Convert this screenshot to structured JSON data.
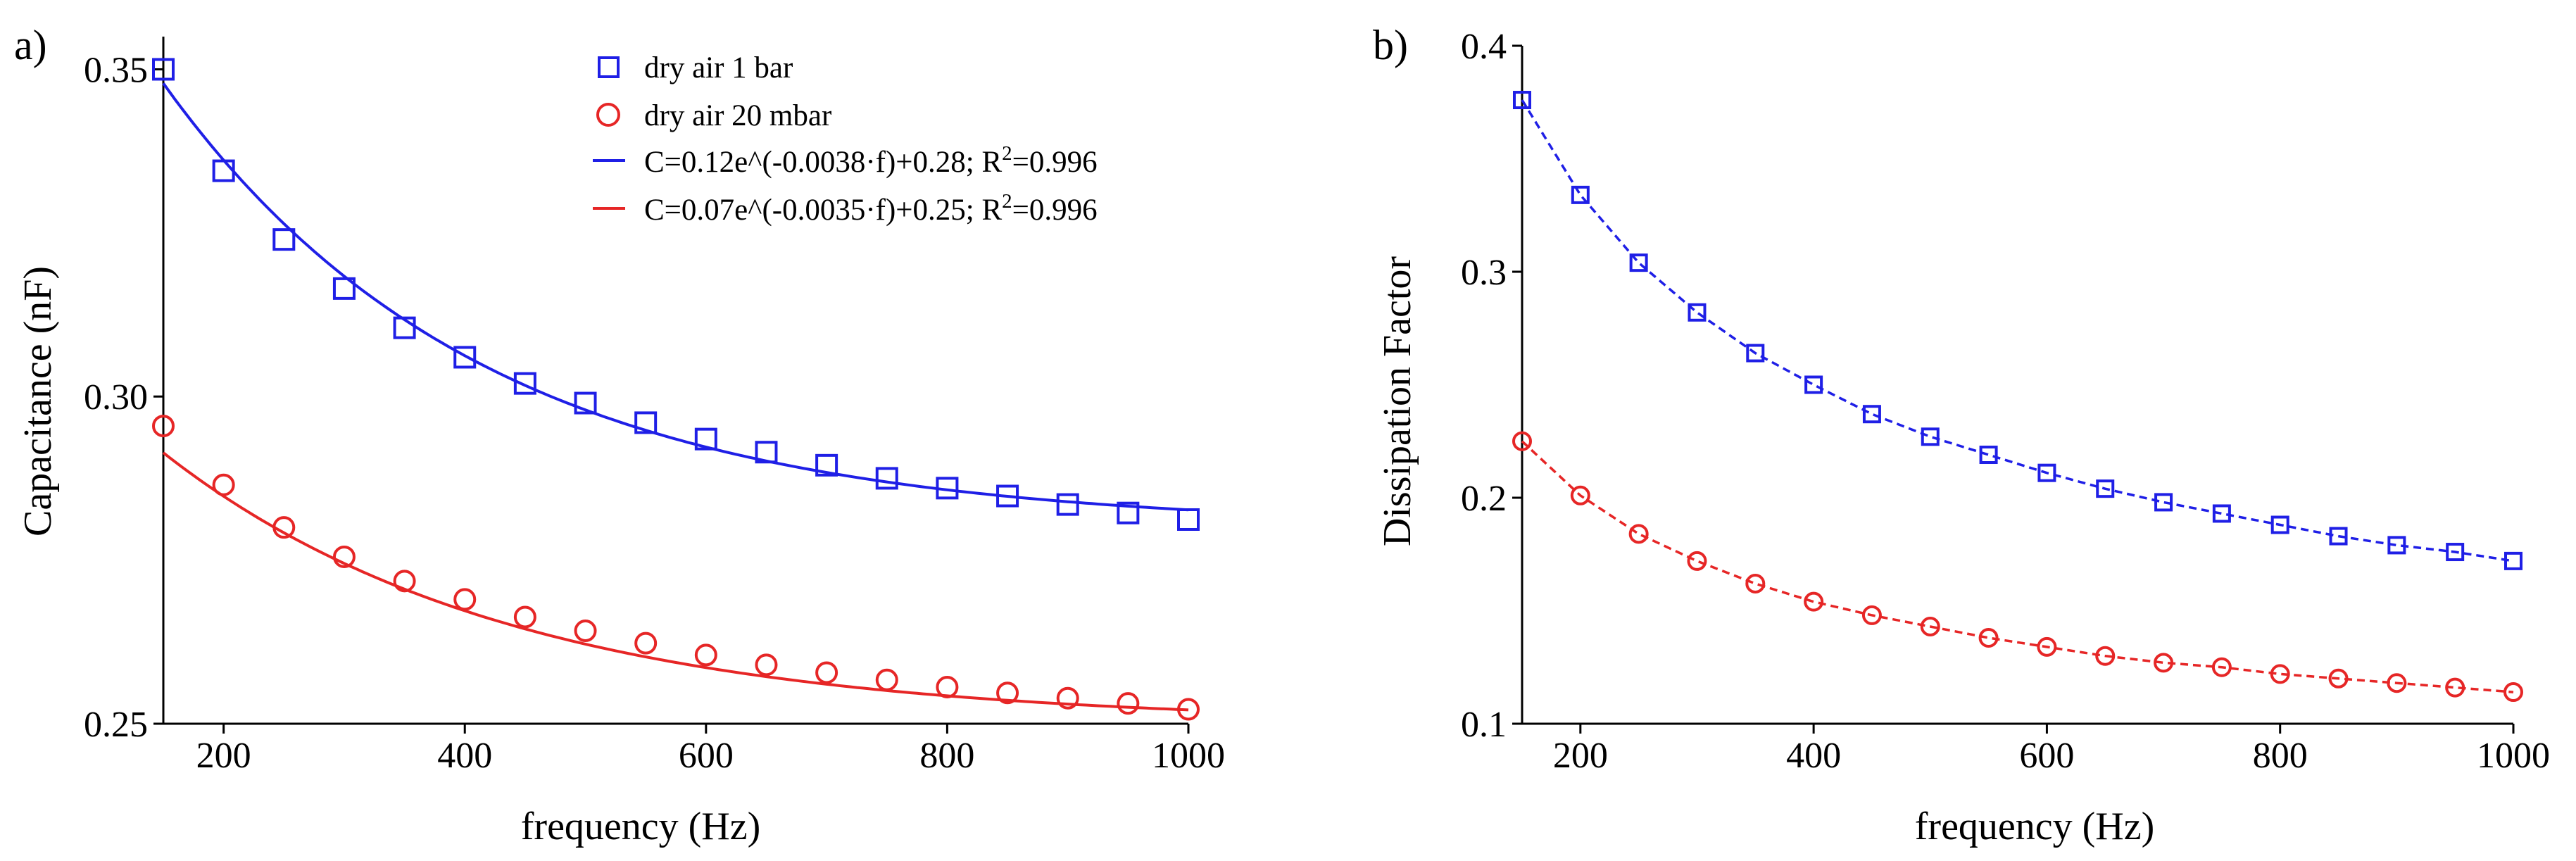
{
  "figure": {
    "panel_a": "a)",
    "panel_b": "b)"
  },
  "colors": {
    "series1": "#1f1fe6",
    "series2": "#e62626",
    "axis": "#000000"
  },
  "chart_data": [
    {
      "type": "scatter",
      "panel": "a)",
      "title": "",
      "xlabel": "frequency (Hz)",
      "ylabel": "Capacitance (nF)",
      "xlim": [
        150,
        1000
      ],
      "ylim": [
        0.25,
        0.355
      ],
      "xticks": [
        "200",
        "400",
        "600",
        "800",
        "1000"
      ],
      "yticks": [
        "0.25",
        "0.30",
        "0.35"
      ],
      "x": [
        150,
        200,
        250,
        300,
        350,
        400,
        450,
        500,
        550,
        600,
        650,
        700,
        750,
        800,
        850,
        900,
        950,
        1000
      ],
      "series": [
        {
          "name": "dry air 1 bar",
          "marker": "square",
          "values": [
            0.35,
            0.3345,
            0.324,
            0.3165,
            0.3105,
            0.306,
            0.302,
            0.299,
            0.296,
            0.2935,
            0.2915,
            0.2895,
            0.2875,
            0.286,
            0.2848,
            0.2835,
            0.2822,
            0.2812
          ]
        },
        {
          "name": "dry air 20 mbar",
          "marker": "circle",
          "values": [
            0.2955,
            0.2865,
            0.28,
            0.2755,
            0.2718,
            0.269,
            0.2663,
            0.2642,
            0.2623,
            0.2605,
            0.259,
            0.2578,
            0.2567,
            0.2556,
            0.2547,
            0.2539,
            0.2531,
            0.2522
          ]
        }
      ],
      "fits": [
        {
          "label": "C=0.12e^(-0.0038·f)+0.28; R",
          "sup": "2",
          "r2": "=0.996",
          "a": 0.12,
          "b": -0.0038,
          "c": 0.28
        },
        {
          "label": "C=0.07e^(-0.0035·f)+0.25; R",
          "sup": "2",
          "r2": "=0.996",
          "a": 0.07,
          "b": -0.0035,
          "c": 0.25
        }
      ]
    },
    {
      "type": "line",
      "panel": "b)",
      "title": "",
      "xlabel": "frequency (Hz)",
      "ylabel": "Dissipation  Factor",
      "xlim": [
        150,
        1000
      ],
      "ylim": [
        0.1,
        0.4
      ],
      "xticks": [
        "200",
        "400",
        "600",
        "800",
        "1000"
      ],
      "yticks": [
        "0.1",
        "0.2",
        "0.3",
        "0.4"
      ],
      "x": [
        150,
        200,
        250,
        300,
        350,
        400,
        450,
        500,
        550,
        600,
        650,
        700,
        750,
        800,
        850,
        900,
        950,
        1000
      ],
      "series": [
        {
          "name": "dry air 1 bar",
          "marker": "square",
          "values": [
            0.376,
            0.334,
            0.304,
            0.282,
            0.264,
            0.25,
            0.237,
            0.227,
            0.219,
            0.211,
            0.204,
            0.198,
            0.193,
            0.188,
            0.183,
            0.179,
            0.176,
            0.172
          ]
        },
        {
          "name": "dry air 20 mbar",
          "marker": "circle",
          "values": [
            0.225,
            0.201,
            0.184,
            0.172,
            0.162,
            0.154,
            0.148,
            0.143,
            0.138,
            0.134,
            0.13,
            0.127,
            0.125,
            0.122,
            0.12,
            0.118,
            0.116,
            0.114
          ]
        }
      ]
    }
  ]
}
